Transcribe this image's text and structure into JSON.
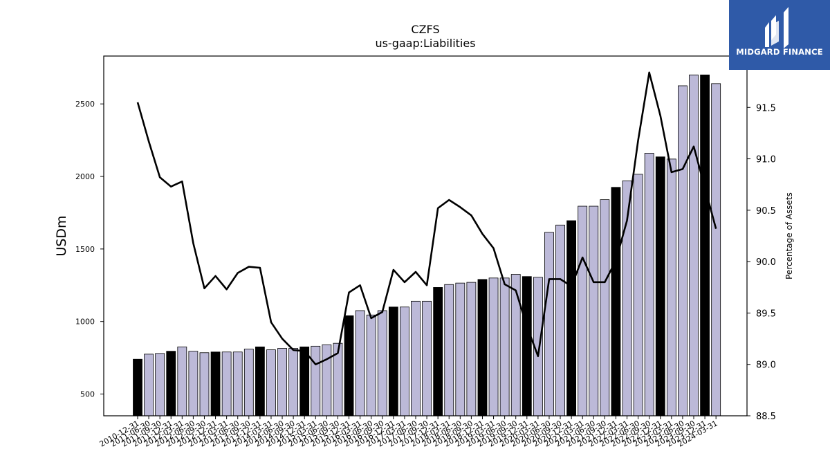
{
  "chart_data": {
    "type": "bar",
    "title": "CZFS",
    "subtitle": "us-gaap:Liabilities",
    "ylabel": "USDm",
    "y2label": "Percentage of Assets",
    "ylim": [
      350,
      2830
    ],
    "y2lim": [
      88.5,
      92.0
    ],
    "yticks": [
      500,
      1000,
      1500,
      2000,
      2500
    ],
    "y2ticks": [
      "88.5",
      "89.0",
      "89.5",
      "90.0",
      "90.5",
      "91.0",
      "91.5"
    ],
    "grid": false,
    "colors": {
      "bar": "#bcb9d8",
      "bar_q4": "#000000",
      "bar_edge": "#000000",
      "line": "#000000"
    },
    "categories": [
      "2010-12-31",
      "2011-06-30",
      "2011-09-30",
      "2011-12-31",
      "2012-03-31",
      "2012-06-30",
      "2012-09-30",
      "2012-12-31",
      "2013-03-31",
      "2013-06-30",
      "2013-09-30",
      "2013-12-31",
      "2014-03-31",
      "2014-06-30",
      "2014-09-30",
      "2014-12-31",
      "2015-03-31",
      "2015-06-30",
      "2015-09-30",
      "2015-12-31",
      "2016-03-31",
      "2016-06-30",
      "2016-09-30",
      "2016-12-31",
      "2017-03-31",
      "2017-06-30",
      "2017-09-30",
      "2017-12-31",
      "2018-03-31",
      "2018-06-30",
      "2018-09-30",
      "2018-12-31",
      "2019-03-31",
      "2019-06-30",
      "2019-09-30",
      "2019-12-31",
      "2020-03-31",
      "2020-06-30",
      "2020-09-30",
      "2020-12-31",
      "2021-03-31",
      "2021-06-30",
      "2021-09-30",
      "2021-12-31",
      "2022-03-31",
      "2022-06-30",
      "2022-09-30",
      "2022-12-31",
      "2023-03-31",
      "2023-06-30",
      "2023-09-30",
      "2023-12-31",
      "2024-03-31"
    ],
    "series": [
      {
        "kind": "bar",
        "values": [
          740,
          775,
          780,
          795,
          825,
          795,
          785,
          790,
          790,
          790,
          810,
          825,
          805,
          815,
          815,
          825,
          830,
          840,
          850,
          1040,
          1075,
          1045,
          1075,
          1100,
          1100,
          1140,
          1140,
          1235,
          1255,
          1265,
          1270,
          1290,
          1300,
          1300,
          1325,
          1310,
          1305,
          1615,
          1665,
          1695,
          1795,
          1795,
          1840,
          1925,
          1970,
          2015,
          2160,
          2135,
          2120,
          2625,
          2700,
          2700,
          2640
        ]
      },
      {
        "kind": "line",
        "axis": "right",
        "values": [
          91.55,
          91.17,
          90.82,
          90.73,
          90.78,
          90.18,
          89.74,
          89.86,
          89.73,
          89.89,
          89.95,
          89.94,
          89.41,
          89.25,
          89.14,
          89.13,
          89.0,
          89.05,
          89.11,
          89.7,
          89.77,
          89.45,
          89.51,
          89.92,
          89.8,
          89.9,
          89.77,
          90.52,
          90.6,
          90.53,
          90.45,
          90.27,
          90.13,
          89.78,
          89.72,
          89.37,
          89.08,
          89.83,
          89.83,
          89.76,
          90.04,
          89.8,
          89.8,
          90.01,
          90.4,
          91.18,
          91.84,
          91.42,
          90.87,
          90.9,
          91.12,
          90.72,
          90.32
        ]
      }
    ]
  },
  "logo": {
    "text": "MIDGARD FINANCE"
  }
}
